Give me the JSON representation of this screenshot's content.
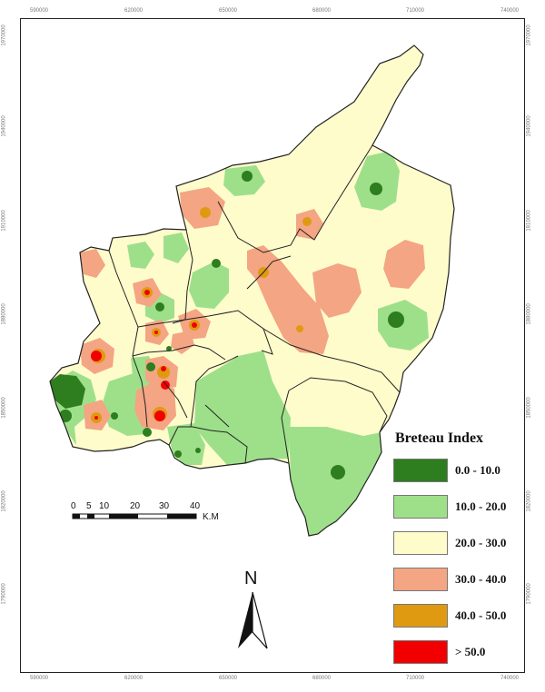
{
  "colors": {
    "class_0_10": "#2e7d1e",
    "class_10_20": "#9ee08a",
    "class_20_30": "#fffccc",
    "class_30_40": "#f4a583",
    "class_40_50": "#e09a12",
    "class_gt_50": "#f20000",
    "boundary": "#222222"
  },
  "legend": {
    "title": "Breteau Index",
    "items": [
      {
        "label": "0.0 - 10.0",
        "color": "#2e7d1e"
      },
      {
        "label": "10.0 - 20.0",
        "color": "#9ee08a"
      },
      {
        "label": "20.0 - 30.0",
        "color": "#fffccc"
      },
      {
        "label": "30.0 - 40.0",
        "color": "#f4a583"
      },
      {
        "label": "40.0 - 50.0",
        "color": "#e09a12"
      },
      {
        "label": "> 50.0",
        "color": "#f20000"
      }
    ]
  },
  "axes": {
    "x_ticks": [
      "590000",
      "620000",
      "650000",
      "680000",
      "710000",
      "740000"
    ],
    "y_ticks": [
      "1970000",
      "1940000",
      "1910000",
      "1880000",
      "1850000",
      "1820000",
      "1790000"
    ]
  },
  "scale_bar": {
    "labels": [
      "0",
      "5",
      "10",
      "20",
      "30",
      "40"
    ],
    "unit": "K.M"
  },
  "north_arrow": {
    "label": "N",
    "icon": "north-arrow-icon"
  }
}
